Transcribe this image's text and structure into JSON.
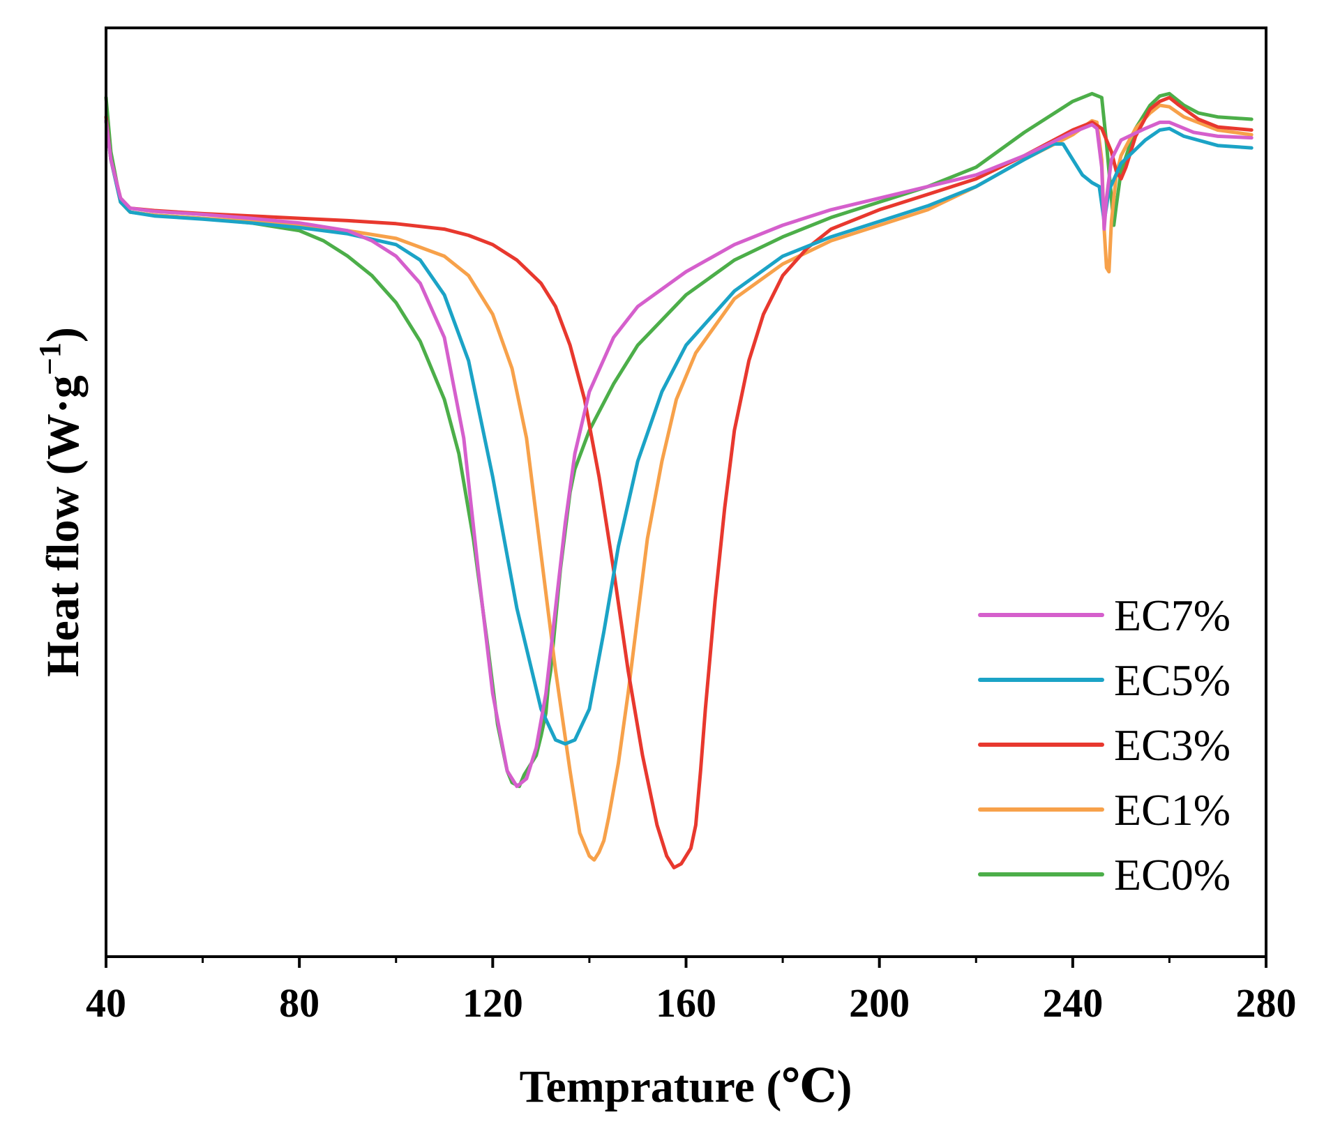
{
  "chart_data": {
    "type": "line",
    "title": "",
    "xlabel": "Temprature (℃)",
    "ylabel_main": "Heat flow (W·g",
    "ylabel_exp": "−1",
    "ylabel_close": ")",
    "xlim": [
      40,
      280
    ],
    "ylim": [
      -10,
      2
    ],
    "xticks": [
      40,
      80,
      120,
      160,
      200,
      240,
      280
    ],
    "xtick_labels": [
      "40",
      "80",
      "120",
      "160",
      "200",
      "240",
      "280"
    ],
    "x_minor_ticks": [
      60,
      100,
      140,
      180,
      220,
      260
    ],
    "grid": false,
    "legend_position": "bottom-right",
    "series": [
      {
        "name": "EC7%",
        "color": "#d55fcc",
        "points": [
          [
            40,
            0.8
          ],
          [
            41,
            0.3
          ],
          [
            43,
            -0.2
          ],
          [
            45,
            -0.33
          ],
          [
            50,
            -0.37
          ],
          [
            60,
            -0.41
          ],
          [
            70,
            -0.46
          ],
          [
            80,
            -0.52
          ],
          [
            90,
            -0.62
          ],
          [
            95,
            -0.75
          ],
          [
            100,
            -0.95
          ],
          [
            105,
            -1.3
          ],
          [
            110,
            -2.0
          ],
          [
            114,
            -3.3
          ],
          [
            117,
            -5.0
          ],
          [
            120,
            -6.6
          ],
          [
            123,
            -7.6
          ],
          [
            125,
            -7.8
          ],
          [
            127,
            -7.7
          ],
          [
            129,
            -7.3
          ],
          [
            131,
            -6.6
          ],
          [
            133,
            -5.5
          ],
          [
            135,
            -4.4
          ],
          [
            137,
            -3.5
          ],
          [
            140,
            -2.7
          ],
          [
            145,
            -2.0
          ],
          [
            150,
            -1.6
          ],
          [
            160,
            -1.15
          ],
          [
            170,
            -0.8
          ],
          [
            180,
            -0.55
          ],
          [
            190,
            -0.35
          ],
          [
            200,
            -0.2
          ],
          [
            210,
            -0.05
          ],
          [
            220,
            0.1
          ],
          [
            230,
            0.35
          ],
          [
            240,
            0.65
          ],
          [
            244,
            0.75
          ],
          [
            245,
            0.7
          ],
          [
            246,
            0.2
          ],
          [
            246.5,
            -0.6
          ],
          [
            247,
            -0.2
          ],
          [
            248,
            0.3
          ],
          [
            250,
            0.55
          ],
          [
            255,
            0.7
          ],
          [
            258,
            0.78
          ],
          [
            260,
            0.78
          ],
          [
            265,
            0.65
          ],
          [
            270,
            0.6
          ],
          [
            277,
            0.58
          ]
        ]
      },
      {
        "name": "EC5%",
        "color": "#1ba3c6",
        "points": [
          [
            40,
            0.8
          ],
          [
            41,
            0.3
          ],
          [
            43,
            -0.25
          ],
          [
            45,
            -0.38
          ],
          [
            50,
            -0.43
          ],
          [
            60,
            -0.47
          ],
          [
            70,
            -0.52
          ],
          [
            80,
            -0.58
          ],
          [
            90,
            -0.66
          ],
          [
            100,
            -0.8
          ],
          [
            105,
            -1.0
          ],
          [
            110,
            -1.45
          ],
          [
            115,
            -2.3
          ],
          [
            120,
            -3.8
          ],
          [
            125,
            -5.5
          ],
          [
            130,
            -6.8
          ],
          [
            133,
            -7.2
          ],
          [
            135,
            -7.25
          ],
          [
            137,
            -7.2
          ],
          [
            140,
            -6.8
          ],
          [
            143,
            -5.8
          ],
          [
            146,
            -4.7
          ],
          [
            150,
            -3.6
          ],
          [
            155,
            -2.7
          ],
          [
            160,
            -2.1
          ],
          [
            170,
            -1.4
          ],
          [
            180,
            -0.95
          ],
          [
            190,
            -0.7
          ],
          [
            200,
            -0.5
          ],
          [
            210,
            -0.3
          ],
          [
            220,
            -0.05
          ],
          [
            230,
            0.3
          ],
          [
            236,
            0.5
          ],
          [
            238,
            0.5
          ],
          [
            240,
            0.3
          ],
          [
            242,
            0.1
          ],
          [
            244,
            0.0
          ],
          [
            245.5,
            -0.05
          ],
          [
            246.5,
            -0.5
          ],
          [
            247.5,
            -0.1
          ],
          [
            250,
            0.25
          ],
          [
            255,
            0.55
          ],
          [
            258,
            0.68
          ],
          [
            260,
            0.7
          ],
          [
            263,
            0.6
          ],
          [
            270,
            0.48
          ],
          [
            277,
            0.45
          ]
        ]
      },
      {
        "name": "EC3%",
        "color": "#e8382e",
        "points": [
          [
            40,
            0.85
          ],
          [
            41,
            0.3
          ],
          [
            43,
            -0.2
          ],
          [
            45,
            -0.33
          ],
          [
            50,
            -0.36
          ],
          [
            60,
            -0.4
          ],
          [
            70,
            -0.43
          ],
          [
            80,
            -0.46
          ],
          [
            90,
            -0.49
          ],
          [
            100,
            -0.53
          ],
          [
            110,
            -0.6
          ],
          [
            115,
            -0.68
          ],
          [
            120,
            -0.8
          ],
          [
            125,
            -1.0
          ],
          [
            130,
            -1.3
          ],
          [
            133,
            -1.6
          ],
          [
            136,
            -2.1
          ],
          [
            139,
            -2.8
          ],
          [
            142,
            -3.8
          ],
          [
            145,
            -5.0
          ],
          [
            148,
            -6.3
          ],
          [
            151,
            -7.4
          ],
          [
            154,
            -8.3
          ],
          [
            156,
            -8.7
          ],
          [
            157.5,
            -8.85
          ],
          [
            159,
            -8.8
          ],
          [
            160,
            -8.7
          ],
          [
            161,
            -8.6
          ],
          [
            162,
            -8.3
          ],
          [
            163,
            -7.6
          ],
          [
            164,
            -6.8
          ],
          [
            166,
            -5.4
          ],
          [
            168,
            -4.2
          ],
          [
            170,
            -3.2
          ],
          [
            173,
            -2.3
          ],
          [
            176,
            -1.7
          ],
          [
            180,
            -1.2
          ],
          [
            185,
            -0.85
          ],
          [
            190,
            -0.6
          ],
          [
            200,
            -0.35
          ],
          [
            210,
            -0.15
          ],
          [
            220,
            0.05
          ],
          [
            230,
            0.35
          ],
          [
            240,
            0.68
          ],
          [
            244,
            0.78
          ],
          [
            246,
            0.7
          ],
          [
            248,
            0.4
          ],
          [
            249,
            0.15
          ],
          [
            250,
            0.05
          ],
          [
            251,
            0.2
          ],
          [
            253,
            0.6
          ],
          [
            256,
            0.95
          ],
          [
            258,
            1.05
          ],
          [
            260,
            1.1
          ],
          [
            262,
            1.0
          ],
          [
            266,
            0.82
          ],
          [
            270,
            0.72
          ],
          [
            277,
            0.68
          ]
        ]
      },
      {
        "name": "EC1%",
        "color": "#f7a14a",
        "points": [
          [
            40,
            0.8
          ],
          [
            41,
            0.3
          ],
          [
            43,
            -0.25
          ],
          [
            45,
            -0.38
          ],
          [
            50,
            -0.42
          ],
          [
            60,
            -0.46
          ],
          [
            70,
            -0.5
          ],
          [
            80,
            -0.55
          ],
          [
            90,
            -0.62
          ],
          [
            100,
            -0.72
          ],
          [
            110,
            -0.95
          ],
          [
            115,
            -1.2
          ],
          [
            120,
            -1.7
          ],
          [
            124,
            -2.4
          ],
          [
            127,
            -3.3
          ],
          [
            130,
            -4.8
          ],
          [
            133,
            -6.3
          ],
          [
            136,
            -7.6
          ],
          [
            138,
            -8.4
          ],
          [
            140,
            -8.7
          ],
          [
            141,
            -8.75
          ],
          [
            142,
            -8.65
          ],
          [
            143,
            -8.5
          ],
          [
            144,
            -8.2
          ],
          [
            146,
            -7.5
          ],
          [
            148,
            -6.6
          ],
          [
            150,
            -5.6
          ],
          [
            152,
            -4.6
          ],
          [
            155,
            -3.6
          ],
          [
            158,
            -2.8
          ],
          [
            162,
            -2.2
          ],
          [
            170,
            -1.5
          ],
          [
            180,
            -1.05
          ],
          [
            190,
            -0.75
          ],
          [
            200,
            -0.55
          ],
          [
            210,
            -0.35
          ],
          [
            220,
            -0.05
          ],
          [
            230,
            0.3
          ],
          [
            240,
            0.62
          ],
          [
            244,
            0.8
          ],
          [
            245,
            0.78
          ],
          [
            246,
            0.3
          ],
          [
            246.5,
            -0.6
          ],
          [
            247,
            -1.1
          ],
          [
            247.5,
            -1.15
          ],
          [
            248,
            -0.5
          ],
          [
            249,
            0.1
          ],
          [
            250,
            0.35
          ],
          [
            253,
            0.7
          ],
          [
            256,
            0.9
          ],
          [
            258,
            1.0
          ],
          [
            260,
            0.98
          ],
          [
            263,
            0.85
          ],
          [
            270,
            0.68
          ],
          [
            277,
            0.62
          ]
        ]
      },
      {
        "name": "EC0%",
        "color": "#4cae49",
        "points": [
          [
            40,
            1.1
          ],
          [
            41,
            0.4
          ],
          [
            43,
            -0.25
          ],
          [
            45,
            -0.38
          ],
          [
            50,
            -0.42
          ],
          [
            60,
            -0.46
          ],
          [
            70,
            -0.52
          ],
          [
            80,
            -0.62
          ],
          [
            85,
            -0.75
          ],
          [
            90,
            -0.95
          ],
          [
            95,
            -1.2
          ],
          [
            100,
            -1.55
          ],
          [
            105,
            -2.05
          ],
          [
            110,
            -2.8
          ],
          [
            113,
            -3.5
          ],
          [
            116,
            -4.6
          ],
          [
            119,
            -6.0
          ],
          [
            121,
            -7.0
          ],
          [
            123,
            -7.6
          ],
          [
            124,
            -7.75
          ],
          [
            125.5,
            -7.8
          ],
          [
            126.5,
            -7.65
          ],
          [
            128,
            -7.5
          ],
          [
            129,
            -7.4
          ],
          [
            130,
            -7.15
          ],
          [
            131,
            -6.85
          ],
          [
            131.5,
            -6.5
          ],
          [
            132,
            -6.3
          ],
          [
            134,
            -5.0
          ],
          [
            136,
            -4.0
          ],
          [
            137,
            -3.7
          ],
          [
            140,
            -3.2
          ],
          [
            145,
            -2.6
          ],
          [
            150,
            -2.1
          ],
          [
            160,
            -1.45
          ],
          [
            170,
            -1.0
          ],
          [
            180,
            -0.7
          ],
          [
            190,
            -0.45
          ],
          [
            200,
            -0.25
          ],
          [
            210,
            -0.05
          ],
          [
            220,
            0.2
          ],
          [
            230,
            0.65
          ],
          [
            240,
            1.05
          ],
          [
            244,
            1.15
          ],
          [
            246,
            1.1
          ],
          [
            247,
            0.5
          ],
          [
            248,
            -0.2
          ],
          [
            248.5,
            -0.55
          ],
          [
            249,
            -0.3
          ],
          [
            250,
            0.15
          ],
          [
            253,
            0.7
          ],
          [
            256,
            1.0
          ],
          [
            258,
            1.12
          ],
          [
            260,
            1.15
          ],
          [
            263,
            1.0
          ],
          [
            266,
            0.9
          ],
          [
            270,
            0.85
          ],
          [
            277,
            0.82
          ]
        ]
      }
    ]
  }
}
